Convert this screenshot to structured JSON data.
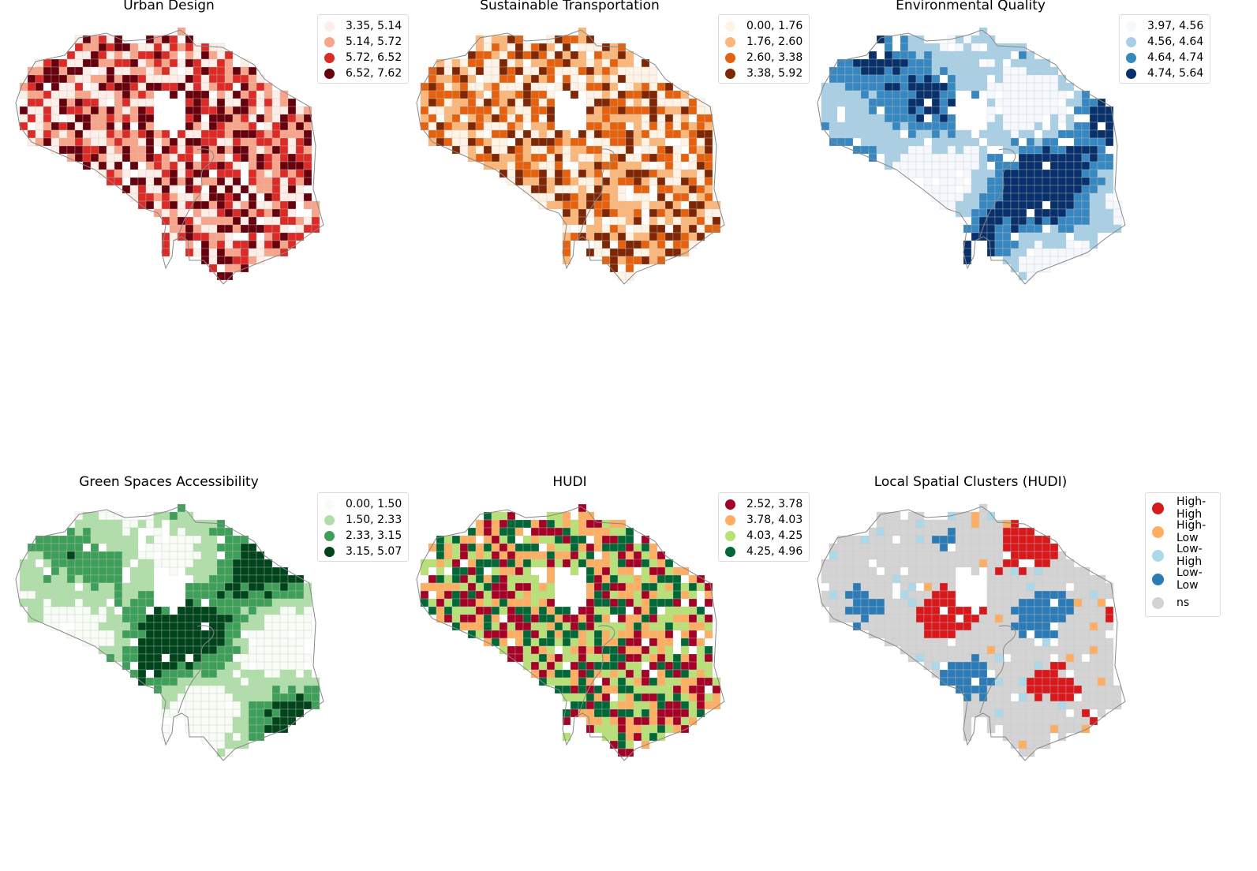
{
  "maps": [
    {
      "title": "Urban Design",
      "legend": [
        {
          "label": "3.35, 5.14",
          "color": "#fdeee8"
        },
        {
          "label": "5.14, 5.72",
          "color": "#f7a48b"
        },
        {
          "label": "5.72, 6.52",
          "color": "#dc2a26"
        },
        {
          "label": "6.52, 7.62",
          "color": "#67000d"
        }
      ]
    },
    {
      "title": "Sustainable Transportation",
      "legend": [
        {
          "label": "0.00, 1.76",
          "color": "#fff3e6"
        },
        {
          "label": "1.76, 2.60",
          "color": "#fbb77a"
        },
        {
          "label": "2.60, 3.38",
          "color": "#e5610e"
        },
        {
          "label": "3.38, 5.92",
          "color": "#7f2704"
        }
      ]
    },
    {
      "title": "Environmental Quality",
      "legend": [
        {
          "label": "3.97, 4.56",
          "color": "#f5f9fe"
        },
        {
          "label": "4.56, 4.64",
          "color": "#a9cfe5"
        },
        {
          "label": "4.64, 4.74",
          "color": "#3787c0"
        },
        {
          "label": "4.74, 5.64",
          "color": "#08306b"
        }
      ]
    },
    {
      "title": "Green Spaces Accessibility",
      "legend": [
        {
          "label": "0.00, 1.50",
          "color": "#f7fcf5"
        },
        {
          "label": "1.50, 2.33",
          "color": "#b0dea9"
        },
        {
          "label": "2.33, 3.15",
          "color": "#3d9f58"
        },
        {
          "label": "3.15, 5.07",
          "color": "#00441b"
        }
      ]
    },
    {
      "title": "HUDI",
      "legend": [
        {
          "label": "2.52, 3.78",
          "color": "#a50026"
        },
        {
          "label": "3.78, 4.03",
          "color": "#fdae61"
        },
        {
          "label": "4.03, 4.25",
          "color": "#b7e075"
        },
        {
          "label": "4.25, 4.96",
          "color": "#006837"
        }
      ]
    },
    {
      "title": "Local Spatial Clusters (HUDI)",
      "legend": [
        {
          "label": "High-High",
          "color": "#d7191c"
        },
        {
          "label": "High-Low",
          "color": "#fdae61"
        },
        {
          "label": "Low-High",
          "color": "#abd9e9"
        },
        {
          "label": "Low-Low",
          "color": "#2c7bb6"
        },
        {
          "label": "ns",
          "color": "#d3d3d3"
        }
      ]
    }
  ]
}
